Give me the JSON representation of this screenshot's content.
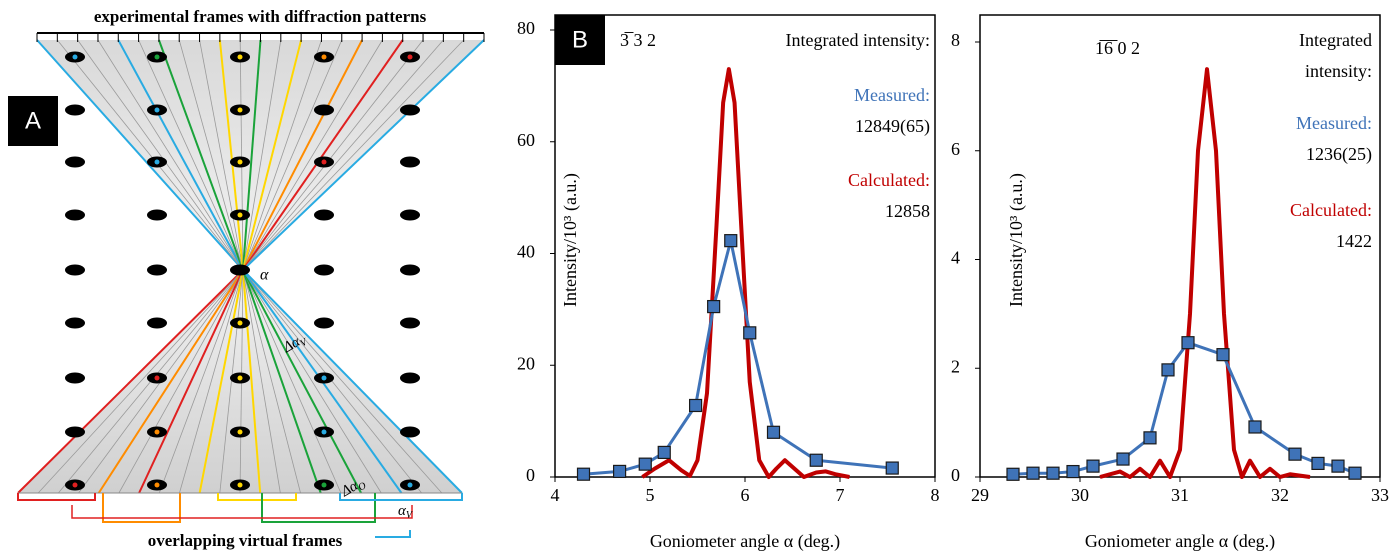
{
  "panel_a": {
    "panel_label": "A",
    "top_label": "experimental frames with diffraction patterns",
    "bottom_label": "overlapping virtual frames",
    "rotation_symbol": "α",
    "virtual_step": {
      "symbol": "Δα",
      "subscript": "V"
    },
    "overlap_step": {
      "symbol": "Δα",
      "subscript": "O"
    },
    "virtual_angle": {
      "symbol": "α",
      "subscript": "V"
    }
  },
  "chart_data": [
    {
      "type": "line",
      "panel_label": "B",
      "reflection": "3̅ 3 2",
      "header": [
        "Integrated intensity:"
      ],
      "measured_value": "12849(65)",
      "calculated_value": "12858",
      "x_label": "Goniometer angle α (deg.)",
      "y_label": "Intensity/10³  (a.u.)",
      "xlim": [
        4,
        8
      ],
      "xticks": [
        4,
        5,
        6,
        7,
        8
      ],
      "ylim": [
        0,
        80
      ],
      "yticks": [
        0,
        20,
        40,
        60,
        80
      ],
      "series": [
        {
          "name": "Calculated:",
          "color": "#c00000",
          "x": [
            4.92,
            5.05,
            5.2,
            5.33,
            5.42,
            5.5,
            5.6,
            5.7,
            5.77,
            5.83,
            5.89,
            5.96,
            6.05,
            6.15,
            6.25,
            6.33,
            6.42,
            6.52,
            6.62,
            6.75,
            6.85,
            6.95,
            7.1
          ],
          "values": [
            0,
            1.5,
            3,
            1.2,
            0.2,
            3,
            15,
            45,
            67,
            73,
            67,
            45,
            17,
            3,
            0,
            1.5,
            3,
            1.5,
            0,
            0.8,
            1,
            0.5,
            0
          ]
        },
        {
          "name": "Measured:",
          "color": "#3f73b8",
          "marker": "square",
          "x": [
            4.3,
            4.68,
            4.95,
            5.15,
            5.48,
            5.67,
            5.85,
            6.05,
            6.3,
            6.75,
            7.55
          ],
          "values": [
            0.5,
            1,
            2.3,
            4.4,
            12.8,
            30.5,
            42.3,
            25.8,
            8,
            3,
            1.6
          ]
        }
      ]
    },
    {
      "type": "line",
      "reflection": "1̅6̅ 0 2",
      "header": [
        "Integrated",
        "intensity:"
      ],
      "measured_value": "1236(25)",
      "calculated_value": "1422",
      "x_label": "Goniometer angle α (deg.)",
      "y_label": "Intensity/10³  (a.u.)",
      "xlim": [
        29,
        33
      ],
      "xticks": [
        29,
        30,
        31,
        32,
        33
      ],
      "ylim": [
        0,
        8
      ],
      "yticks": [
        0,
        2,
        4,
        6,
        8
      ],
      "series": [
        {
          "name": "Calculated:",
          "color": "#c00000",
          "x": [
            30.2,
            30.4,
            30.5,
            30.6,
            30.7,
            30.8,
            30.9,
            31.0,
            31.1,
            31.18,
            31.27,
            31.36,
            31.44,
            31.54,
            31.62,
            31.7,
            31.8,
            31.9,
            32.0,
            32.1,
            32.3
          ],
          "values": [
            0,
            0.1,
            0,
            0.15,
            0,
            0.3,
            0,
            0.5,
            3,
            6,
            7.5,
            6,
            3,
            0.5,
            0,
            0.3,
            0,
            0.15,
            0,
            0.05,
            0
          ]
        },
        {
          "name": "Measured:",
          "color": "#3f73b8",
          "marker": "square",
          "x": [
            29.33,
            29.53,
            29.73,
            29.93,
            30.13,
            30.43,
            30.7,
            30.88,
            31.08,
            31.43,
            31.75,
            32.15,
            32.38,
            32.58,
            32.75
          ],
          "values": [
            0.05,
            0.07,
            0.07,
            0.1,
            0.2,
            0.33,
            0.72,
            1.97,
            2.47,
            2.25,
            0.92,
            0.42,
            0.25,
            0.2,
            0.07
          ]
        }
      ]
    }
  ]
}
